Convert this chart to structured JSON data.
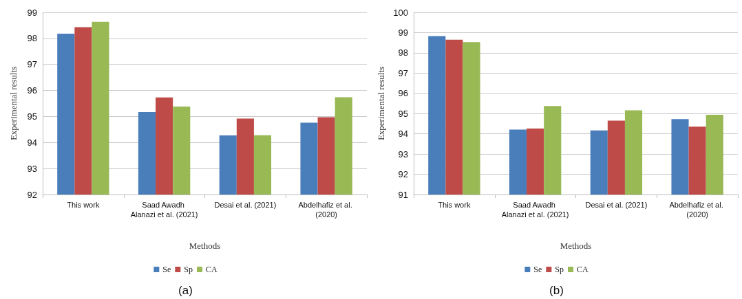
{
  "chart_data": [
    {
      "type": "bar",
      "xlabel": "Methods",
      "ylabel": "Experimental results",
      "categories": [
        "This work",
        "Saad Awadh Alanazi et al. (2021)",
        "Desai et al. (2021)",
        "Abdelhafiz et al. (2020)"
      ],
      "series": [
        {
          "name": "Se",
          "color": "#4a7ebb",
          "values": [
            98.18,
            95.17,
            94.27,
            94.76
          ]
        },
        {
          "name": "Sp",
          "color": "#be4b48",
          "values": [
            98.43,
            95.73,
            94.92,
            94.97
          ]
        },
        {
          "name": "CA",
          "color": "#98b954",
          "values": [
            98.64,
            95.38,
            94.28,
            95.74
          ]
        }
      ],
      "ylim": [
        92,
        99
      ],
      "yticks": [
        92,
        93,
        94,
        95,
        96,
        97,
        98,
        99
      ],
      "grid": "y",
      "legend": "bottom",
      "annotations": [
        "(a)"
      ]
    },
    {
      "type": "bar",
      "xlabel": "Methods",
      "ylabel": "Experimental results",
      "categories": [
        "This work",
        "Saad Awadh Alanazi et al. (2021)",
        "Desai et al. (2021)",
        "Abdelhafiz et al. (2020)"
      ],
      "series": [
        {
          "name": "Se",
          "color": "#4a7ebb",
          "values": [
            98.83,
            94.21,
            94.17,
            94.73
          ]
        },
        {
          "name": "Sp",
          "color": "#be4b48",
          "values": [
            98.65,
            94.26,
            94.65,
            94.35
          ]
        },
        {
          "name": "CA",
          "color": "#98b954",
          "values": [
            98.53,
            95.37,
            95.16,
            94.94
          ]
        }
      ],
      "ylim": [
        91,
        100
      ],
      "yticks": [
        91,
        92,
        93,
        94,
        95,
        96,
        97,
        98,
        99,
        100
      ],
      "grid": "y",
      "legend": "bottom",
      "annotations": [
        "(b)"
      ]
    }
  ]
}
